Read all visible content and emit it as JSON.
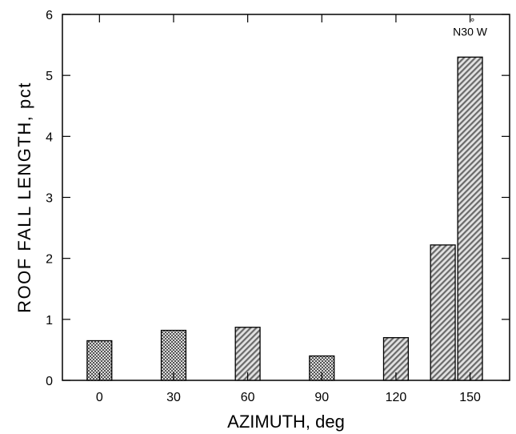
{
  "chart_data": {
    "type": "bar",
    "title": "",
    "xlabel": "AZIMUTH, deg",
    "ylabel": "ROOF FALL LENGTH, pct",
    "ylim": [
      0,
      6
    ],
    "y_ticks": [
      "0",
      "1",
      "2",
      "3",
      "4",
      "5",
      "6"
    ],
    "x_ticks": [
      "0",
      "30",
      "60",
      "90",
      "120",
      "150"
    ],
    "x_tick_values": [
      0,
      30,
      60,
      90,
      120,
      150
    ],
    "xlim": [
      -15,
      166
    ],
    "bars": [
      {
        "x": 0,
        "value": 0.65,
        "pattern": "checker"
      },
      {
        "x": 30,
        "value": 0.82,
        "pattern": "checker"
      },
      {
        "x": 60,
        "value": 0.87,
        "pattern": "diagonal"
      },
      {
        "x": 90,
        "value": 0.4,
        "pattern": "checker"
      },
      {
        "x": 120,
        "value": 0.7,
        "pattern": "diagonal"
      },
      {
        "x": 139,
        "value": 2.22,
        "pattern": "diagonal"
      },
      {
        "x": 150,
        "value": 5.3,
        "pattern": "diagonal"
      }
    ],
    "bar_width_deg": 10,
    "annotation": {
      "text": "N30 W",
      "degree_mark": "°",
      "x": 150,
      "y": 5.65
    },
    "grid": false,
    "legend": "none"
  }
}
